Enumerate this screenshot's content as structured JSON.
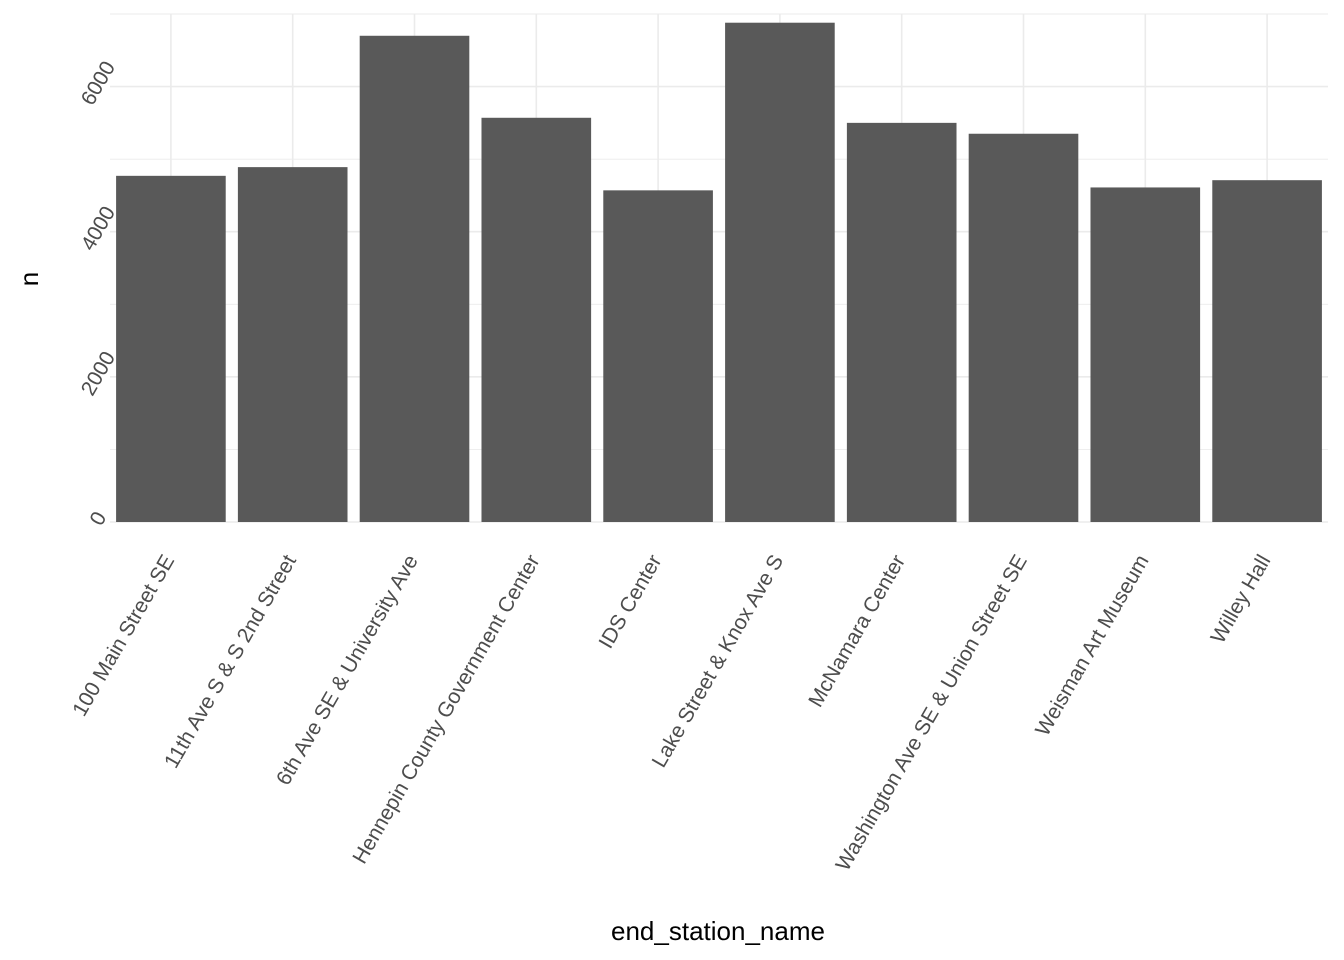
{
  "chart_data": {
    "type": "bar",
    "title": "",
    "xlabel": "end_station_name",
    "ylabel": "n",
    "categories": [
      "100 Main Street SE",
      "11th Ave S & S 2nd Street",
      "6th Ave SE & University Ave",
      "Hennepin County Government Center",
      "IDS Center",
      "Lake Street & Knox Ave S",
      "McNamara Center",
      "Washington Ave SE & Union Street SE",
      "Weisman Art Museum",
      "Willey Hall"
    ],
    "values": [
      4770,
      4890,
      6700,
      5570,
      4570,
      6880,
      5500,
      5350,
      4610,
      4710
    ],
    "ylim": [
      0,
      7000
    ],
    "yticks": [
      0,
      2000,
      4000,
      6000
    ],
    "grid": true,
    "legend": "none",
    "colors": {
      "bar": "#595959",
      "grid": "#ebebeb",
      "tick_text": "#4d4d4d",
      "title_text": "#000000"
    }
  }
}
